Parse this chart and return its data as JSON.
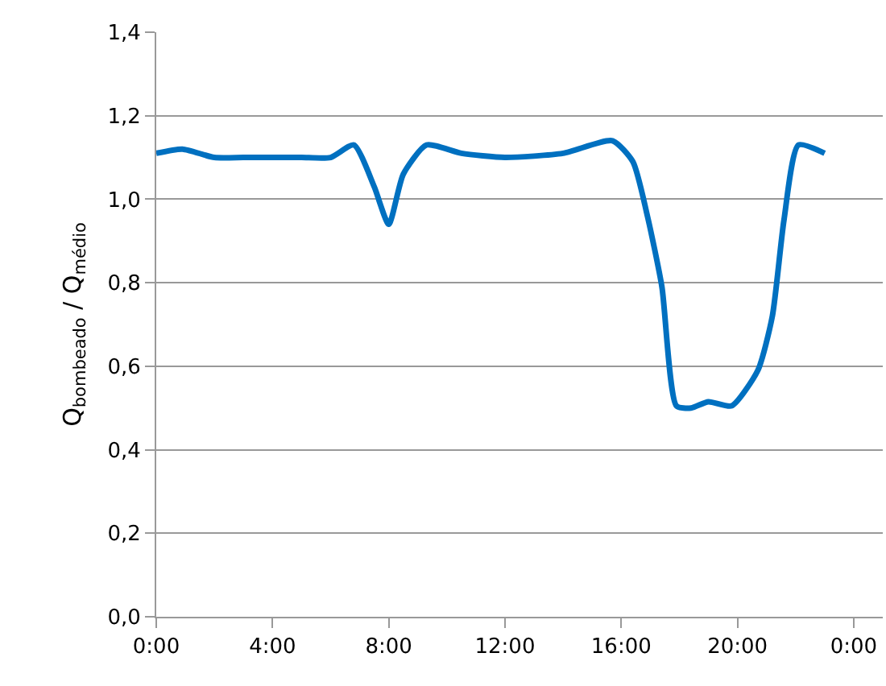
{
  "chart_data": {
    "type": "line",
    "ylabel": "Q$_{bombeado}$ / Q$_{médio}$",
    "x": [
      0,
      0.9,
      2,
      3,
      4,
      5,
      6,
      6.8,
      7.5,
      8,
      8.5,
      9.3,
      10.5,
      12,
      14,
      15.7,
      16.4,
      16.9,
      17.4,
      17.9,
      18.4,
      19,
      19.8,
      20.7,
      21.2,
      21.6,
      22.1,
      23
    ],
    "series": [
      {
        "color": "#0070c0",
        "values": [
          1.11,
          1.12,
          1.1,
          1.1,
          1.1,
          1.1,
          1.1,
          1.13,
          1.03,
          0.94,
          1.06,
          1.13,
          1.11,
          1.1,
          1.11,
          1.14,
          1.09,
          0.96,
          0.79,
          0.505,
          0.5,
          0.515,
          0.505,
          0.59,
          0.72,
          0.95,
          1.13,
          1.11
        ]
      }
    ],
    "xlim": [
      0,
      25
    ],
    "xticks": [
      {
        "value": 0,
        "label": "0:00"
      },
      {
        "value": 4,
        "label": "4:00"
      },
      {
        "value": 8,
        "label": "8:00"
      },
      {
        "value": 12,
        "label": "12:00"
      },
      {
        "value": 16,
        "label": "16:00"
      },
      {
        "value": 20,
        "label": "20:00"
      },
      {
        "value": 24,
        "label": "0:00"
      }
    ],
    "ylim": [
      0,
      1.4
    ],
    "yticks": [
      {
        "value": 0,
        "label": "0,0"
      },
      {
        "value": 0.2,
        "label": "0,2"
      },
      {
        "value": 0.4,
        "label": "0,4"
      },
      {
        "value": 0.6,
        "label": "0,6"
      },
      {
        "value": 0.8,
        "label": "0,8"
      },
      {
        "value": 1,
        "label": "1,0"
      },
      {
        "value": 1.2,
        "label": "1,2"
      },
      {
        "value": 1.4,
        "label": "1,4"
      }
    ],
    "grid": "y",
    "legend": false,
    "marker": "none",
    "line_style": "solid"
  }
}
